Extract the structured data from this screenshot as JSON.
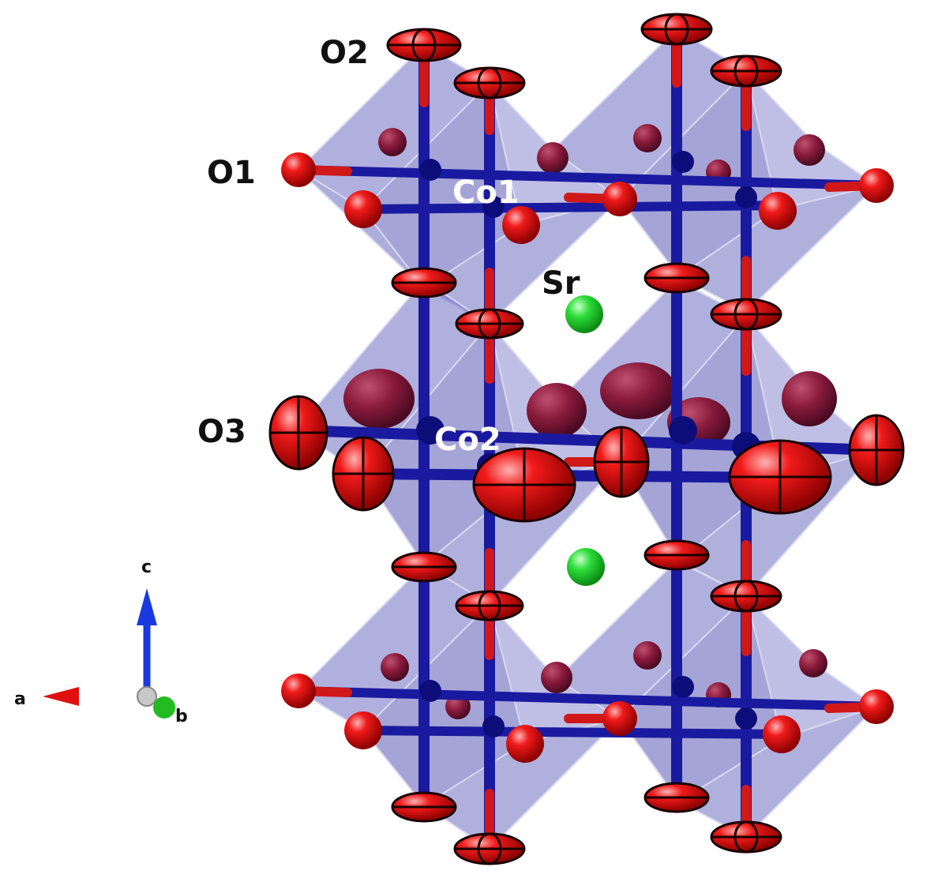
{
  "labels": {
    "o2": "O2",
    "o1": "O1",
    "co1": "Co1",
    "sr": "Sr",
    "o3": "O3",
    "co2": "Co2"
  },
  "axes": {
    "c": "c",
    "a": "a",
    "b": "b"
  },
  "colors": {
    "octahedron_fill": "#6f70c4",
    "octahedron_edge": "#d8d8f0",
    "cobalt_bond": "#1a1aa0",
    "oxygen": "#e01010",
    "oxygen_edge": "#1a0000",
    "strontium": "#22cc33",
    "axis_a": "#e01010",
    "axis_b": "#22bb22",
    "axis_c": "#1a3adf"
  }
}
